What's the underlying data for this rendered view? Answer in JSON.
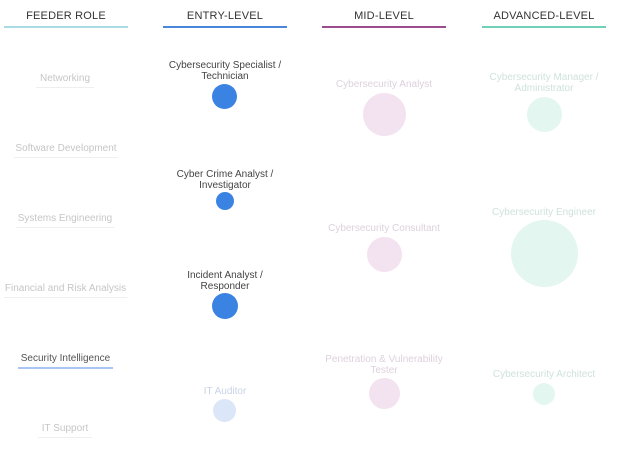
{
  "columns": {
    "feeder": "FEEDER ROLE",
    "entry": "ENTRY-LEVEL",
    "mid": "MID-LEVEL",
    "advanced": "ADVANCED-LEVEL"
  },
  "colors": {
    "feeder": "#a9dbe4",
    "entry": "#4a86d9",
    "mid": "#9b4d8e",
    "advanced": "#6fd2b8"
  },
  "feeder_roles": [
    {
      "label": "Networking",
      "active": false
    },
    {
      "label": "Software Development",
      "active": false
    },
    {
      "label": "Systems Engineering",
      "active": false
    },
    {
      "label": "Financial and Risk Analysis",
      "active": false
    },
    {
      "label": "Security Intelligence",
      "active": true
    },
    {
      "label": "IT Support",
      "active": false
    }
  ],
  "entry_roles": [
    {
      "line1": "Cybersecurity Specialist /",
      "line2": "Technician",
      "active": true
    },
    {
      "line1": "Cyber Crime Analyst /",
      "line2": "Investigator",
      "active": true
    },
    {
      "line1": "Incident Analyst /",
      "line2": "Responder",
      "active": true
    },
    {
      "line1": "IT Auditor",
      "line2": "",
      "active": false
    }
  ],
  "mid_roles": [
    {
      "line1": "Cybersecurity Analyst",
      "line2": ""
    },
    {
      "line1": "Cybersecurity Consultant",
      "line2": ""
    },
    {
      "line1": "Penetration & Vulnerability",
      "line2": "Tester"
    }
  ],
  "advanced_roles": [
    {
      "line1": "Cybersecurity Manager /",
      "line2": "Administrator"
    },
    {
      "line1": "Cybersecurity Engineer",
      "line2": ""
    },
    {
      "line1": "Cybersecurity Architect",
      "line2": ""
    }
  ]
}
